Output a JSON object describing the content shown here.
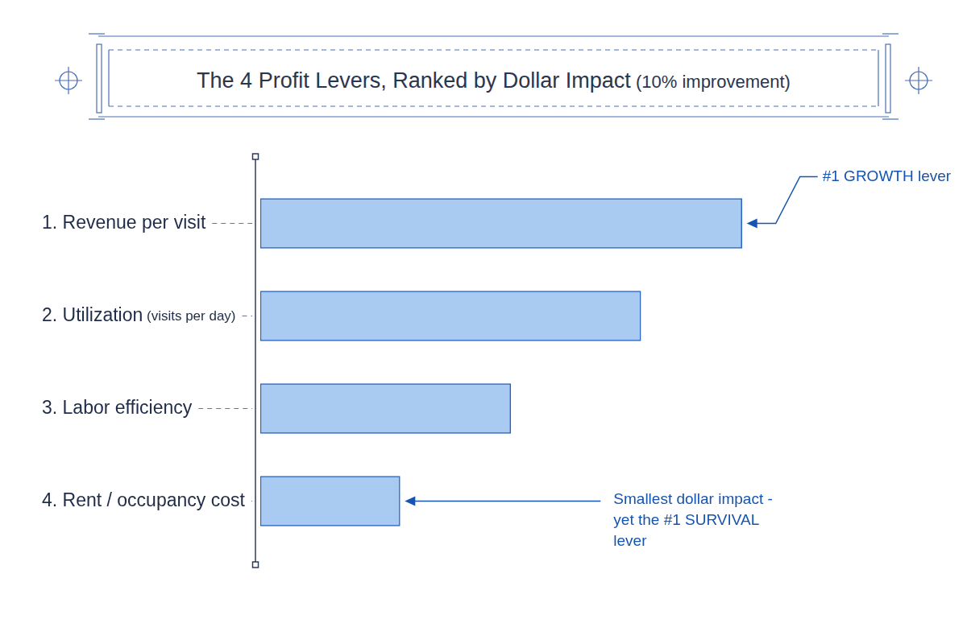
{
  "chart_data": {
    "type": "bar",
    "orientation": "horizontal",
    "title": "The 4 Profit Levers, Ranked by Dollar Impact (10% improvement)",
    "categories": [
      "1. Revenue per visit",
      "2. Utilization (visits per day)",
      "3. Labor efficiency",
      "4. Rent / occupancy cost"
    ],
    "values": [
      100,
      79,
      52,
      29
    ],
    "color": "#aacbf1",
    "xlim": [
      0,
      130
    ],
    "grid": false,
    "tick_labels": "y",
    "annotations": [
      {
        "text": "#1 GROWTH lever",
        "category": "1. Revenue per visit"
      },
      {
        "text": "Smallest dollar impact - yet the #1 SURVIVAL lever",
        "category": "4. Rent / occupancy cost"
      }
    ]
  }
}
